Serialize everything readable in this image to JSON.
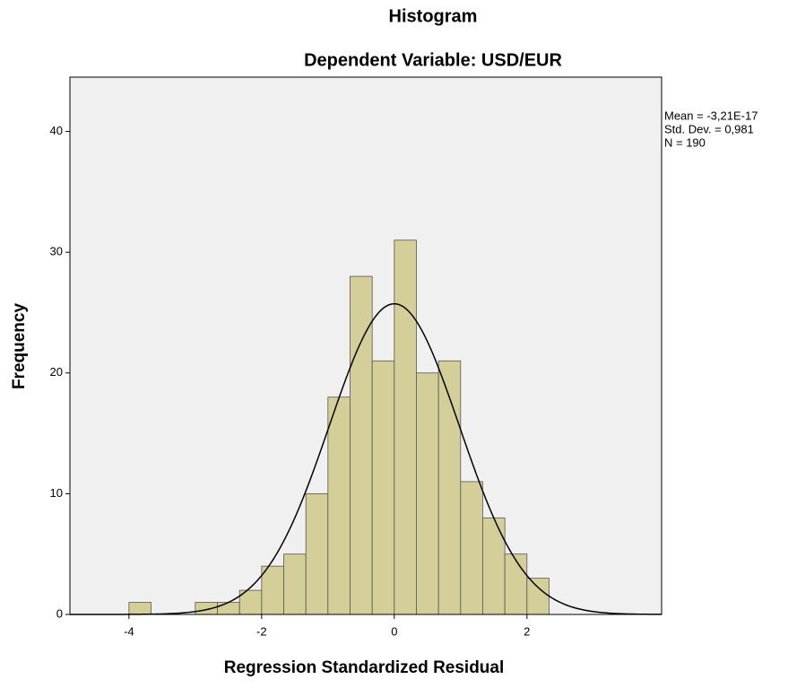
{
  "chart_data": {
    "type": "histogram",
    "title": "Histogram",
    "subtitle": "Dependent Variable: USD/EUR",
    "x_label": "Regression Standardized Residual",
    "y_label": "Frequency",
    "bins": [
      -4,
      -3.667,
      -3.333,
      -3,
      -2.667,
      -2.333,
      -2,
      -1.667,
      -1.333,
      -1,
      -0.667,
      -0.333,
      0,
      0.333,
      0.667,
      1,
      1.333,
      1.667,
      2,
      2.333
    ],
    "counts": [
      1,
      0,
      0,
      1,
      1,
      2,
      4,
      5,
      10,
      18,
      28,
      21,
      31,
      20,
      21,
      11,
      8,
      5,
      3
    ],
    "color": "#d4cf99",
    "xlim": [
      -4.89,
      4.03
    ],
    "ylim": [
      0,
      44.5
    ],
    "xticks": [
      -4,
      -2,
      0,
      2
    ],
    "yticks": [
      0,
      10,
      20,
      30,
      40
    ],
    "stats": {
      "mean": -3.21e-17,
      "std_dev": 0.981,
      "n": 190,
      "value_labels": [
        "Mean = -3,21E-17",
        "Std. Dev. = 0,981",
        "N = 190"
      ]
    },
    "normal_curve": true
  }
}
